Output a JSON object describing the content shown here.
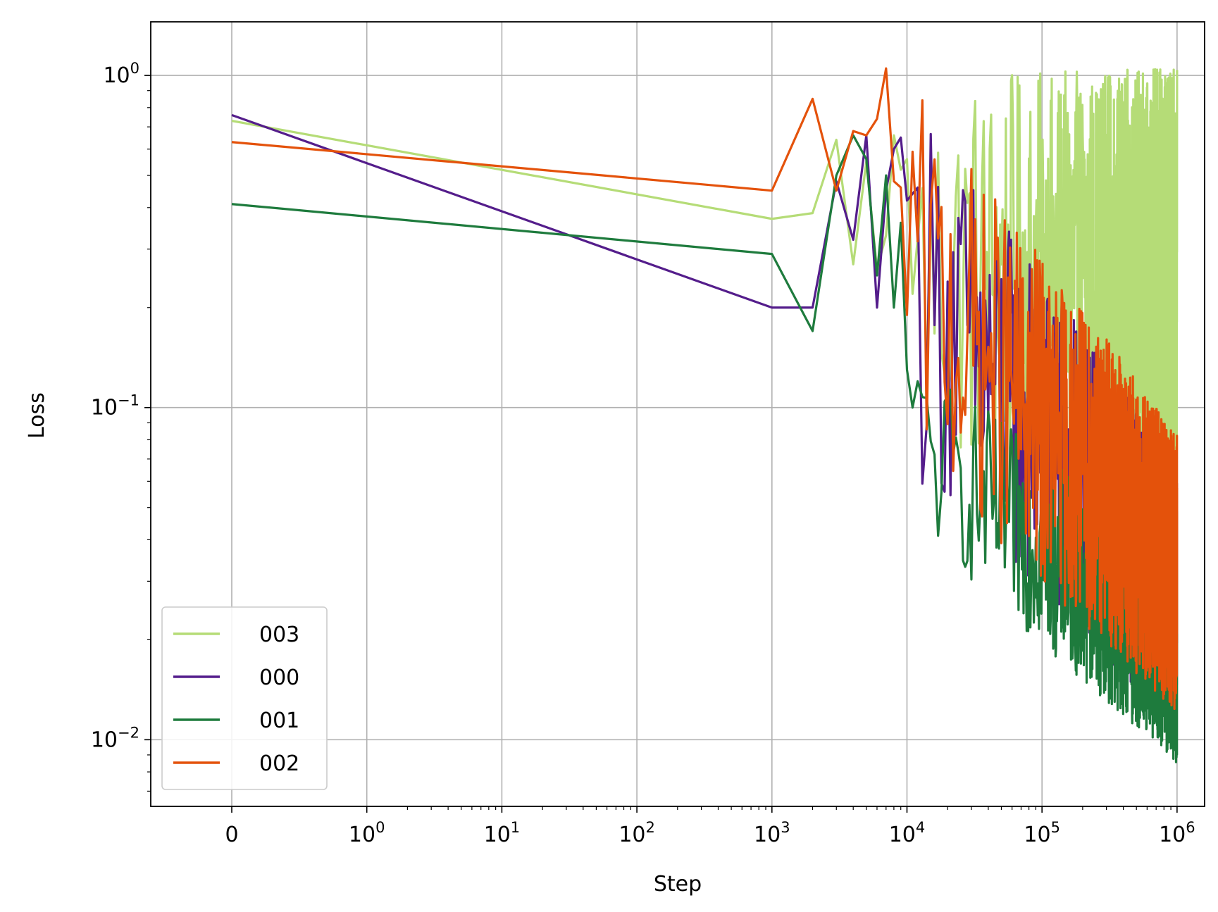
{
  "chart_data": {
    "type": "line",
    "xlabel": "Step",
    "ylabel": "Loss",
    "xscale": "symlog",
    "yscale": "log",
    "xlim": [
      -0.6,
      1600000
    ],
    "ylim": [
      0.0063,
      1.45
    ],
    "grid": true,
    "legend_position": "lower left",
    "x_ticks": [
      {
        "value": 0,
        "base": "0",
        "exp": ""
      },
      {
        "value": 1,
        "base": "10",
        "exp": "0"
      },
      {
        "value": 10,
        "base": "10",
        "exp": "1"
      },
      {
        "value": 100,
        "base": "10",
        "exp": "2"
      },
      {
        "value": 1000,
        "base": "10",
        "exp": "3"
      },
      {
        "value": 10000,
        "base": "10",
        "exp": "4"
      },
      {
        "value": 100000,
        "base": "10",
        "exp": "5"
      },
      {
        "value": 1000000,
        "base": "10",
        "exp": "6"
      }
    ],
    "y_ticks": [
      {
        "value": 1,
        "base": "10",
        "exp": "0"
      },
      {
        "value": 0.1,
        "base": "10",
        "exp": "−1"
      },
      {
        "value": 0.01,
        "base": "10",
        "exp": "−2"
      }
    ],
    "series": [
      {
        "name": "003",
        "color": "#b5dc77",
        "anchors": [
          [
            0,
            0.73
          ],
          [
            1000,
            0.37
          ],
          [
            2000,
            0.385
          ],
          [
            3000,
            0.64
          ],
          [
            4000,
            0.27
          ],
          [
            5000,
            0.55
          ],
          [
            6000,
            0.26
          ],
          [
            7000,
            0.33
          ],
          [
            8000,
            0.66
          ],
          [
            9000,
            0.52
          ],
          [
            10000,
            0.56
          ],
          [
            11000,
            0.22
          ],
          [
            13000,
            0.14
          ],
          [
            15000,
            0.85
          ],
          [
            20000,
            0.9
          ],
          [
            25000,
            0.1
          ],
          [
            30000,
            0.88
          ],
          [
            35000,
            1.0
          ],
          [
            40000,
            0.55
          ],
          [
            60000,
            0.78
          ],
          [
            100000,
            0.9
          ],
          [
            130000,
            0.94
          ],
          [
            200000,
            0.99
          ],
          [
            300000,
            1.03
          ],
          [
            500000,
            1.06
          ],
          [
            700000,
            1.09
          ],
          [
            1000000,
            0.95
          ]
        ],
        "noisy_from": 13000,
        "noise_lo": 0.065,
        "noise_hi": 1.0,
        "noise_lo_end": 0.06,
        "noise_hi_end": 1.05
      },
      {
        "name": "000",
        "color": "#541d8b",
        "anchors": [
          [
            0,
            0.76
          ],
          [
            1000,
            0.2
          ],
          [
            2000,
            0.2
          ],
          [
            3000,
            0.48
          ],
          [
            4000,
            0.32
          ],
          [
            5000,
            0.66
          ],
          [
            6000,
            0.2
          ],
          [
            7000,
            0.45
          ],
          [
            8000,
            0.6
          ],
          [
            9000,
            0.65
          ],
          [
            10000,
            0.42
          ],
          [
            15000,
            0.6
          ],
          [
            20000,
            0.85
          ],
          [
            30000,
            0.7
          ],
          [
            50000,
            0.3
          ],
          [
            100000,
            0.1
          ],
          [
            200000,
            0.05
          ],
          [
            400000,
            0.04
          ],
          [
            1000000,
            0.05
          ]
        ],
        "noisy_from": 12000,
        "noise_lo": 0.06,
        "noise_hi": 0.9,
        "noise_lo_end": 0.011,
        "noise_hi_end": 0.065
      },
      {
        "name": "001",
        "color": "#1e7b3d",
        "anchors": [
          [
            0,
            0.41
          ],
          [
            1000,
            0.29
          ],
          [
            2000,
            0.17
          ],
          [
            3000,
            0.5
          ],
          [
            4000,
            0.66
          ],
          [
            5000,
            0.56
          ],
          [
            6000,
            0.25
          ],
          [
            7000,
            0.5
          ],
          [
            8000,
            0.2
          ],
          [
            9000,
            0.36
          ],
          [
            10000,
            0.13
          ],
          [
            11000,
            0.1
          ],
          [
            12000,
            0.12
          ],
          [
            13000,
            0.07
          ],
          [
            100000,
            0.02
          ],
          [
            1000000,
            0.015
          ]
        ],
        "noisy_from": 13000,
        "noise_lo": 0.04,
        "noise_hi": 0.14,
        "noise_lo_end": 0.0085,
        "noise_hi_end": 0.035
      },
      {
        "name": "002",
        "color": "#e4520b",
        "anchors": [
          [
            0,
            0.63
          ],
          [
            1000,
            0.45
          ],
          [
            2000,
            0.85
          ],
          [
            3000,
            0.45
          ],
          [
            4000,
            0.68
          ],
          [
            5000,
            0.66
          ],
          [
            6000,
            0.74
          ],
          [
            7000,
            1.05
          ],
          [
            8000,
            0.48
          ],
          [
            9000,
            0.46
          ],
          [
            10000,
            0.19
          ],
          [
            11000,
            0.72
          ],
          [
            13000,
            0.2
          ],
          [
            15000,
            0.95
          ],
          [
            20000,
            0.4
          ],
          [
            30000,
            0.15
          ],
          [
            100000,
            0.05
          ],
          [
            1000000,
            0.03
          ]
        ],
        "noisy_from": 11000,
        "noise_lo": 0.07,
        "noise_hi": 0.92,
        "noise_lo_end": 0.012,
        "noise_hi_end": 0.085
      }
    ]
  }
}
